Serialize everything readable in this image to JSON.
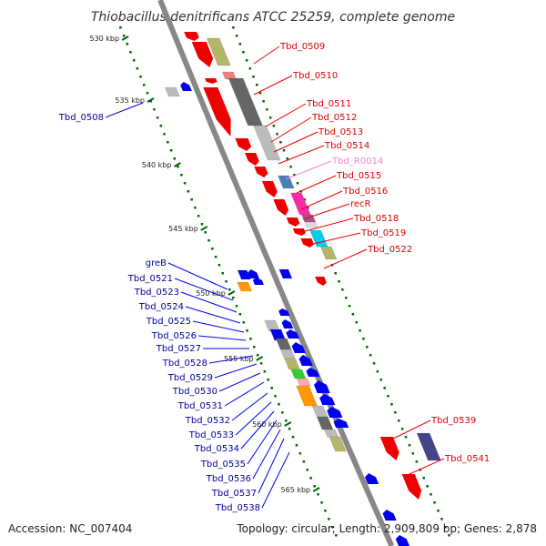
{
  "title": "Thiobacillus denitrificans ATCC 25259, complete genome",
  "footer": {
    "accession": "Accession: NC_007404",
    "summary": "Topology: circular; Length: 2,909,809 bp; Genes: 2,878"
  },
  "colors": {
    "backbone": "#888888",
    "forward": "#ee0000",
    "reverse": "#0000ee",
    "tick": "#006600",
    "rna": "#ee88cc",
    "cog_olive": "#b5b56a",
    "cog_gray_dark": "#666666",
    "cog_gray_light": "#bbbbbb",
    "cog_blue": "#4682b4",
    "cog_magenta": "#ff2aa8",
    "cog_cyan": "#00ccee",
    "cog_orange": "#ff9900",
    "cog_green": "#33cc33",
    "cog_navy": "#444488"
  },
  "ticks": [
    {
      "label": "530 kbp"
    },
    {
      "label": "535 kbp"
    },
    {
      "label": "540 kbp"
    },
    {
      "label": "545 kbp"
    },
    {
      "label": "550 kbp"
    },
    {
      "label": "555 kbp"
    },
    {
      "label": "560 kbp"
    },
    {
      "label": "565 kbp"
    }
  ],
  "labels_right": [
    {
      "text": "Tbd_0509",
      "kind": "forward"
    },
    {
      "text": "Tbd_0510",
      "kind": "forward"
    },
    {
      "text": "Tbd_0511",
      "kind": "forward"
    },
    {
      "text": "Tbd_0512",
      "kind": "forward"
    },
    {
      "text": "Tbd_0513",
      "kind": "forward"
    },
    {
      "text": "Tbd_0514",
      "kind": "forward"
    },
    {
      "text": "Tbd_R0014",
      "kind": "rna"
    },
    {
      "text": "Tbd_0515",
      "kind": "forward"
    },
    {
      "text": "Tbd_0516",
      "kind": "forward"
    },
    {
      "text": "recR",
      "kind": "forward"
    },
    {
      "text": "Tbd_0518",
      "kind": "forward"
    },
    {
      "text": "Tbd_0519",
      "kind": "forward"
    },
    {
      "text": "Tbd_0522",
      "kind": "forward"
    },
    {
      "text": "Tbd_0539",
      "kind": "forward"
    },
    {
      "text": "Tbd_0541",
      "kind": "forward"
    }
  ],
  "labels_left": [
    {
      "text": "Tbd_0508"
    },
    {
      "text": "greB"
    },
    {
      "text": "Tbd_0521"
    },
    {
      "text": "Tbd_0523"
    },
    {
      "text": "Tbd_0524"
    },
    {
      "text": "Tbd_0525"
    },
    {
      "text": "Tbd_0526"
    },
    {
      "text": "Tbd_0527"
    },
    {
      "text": "Tbd_0528"
    },
    {
      "text": "Tbd_0529"
    },
    {
      "text": "Tbd_0530"
    },
    {
      "text": "Tbd_0531"
    },
    {
      "text": "Tbd_0532"
    },
    {
      "text": "Tbd_0533"
    },
    {
      "text": "Tbd_0534"
    },
    {
      "text": "Tbd_0535"
    },
    {
      "text": "Tbd_0536"
    },
    {
      "text": "Tbd_0537"
    },
    {
      "text": "Tbd_0538"
    }
  ]
}
